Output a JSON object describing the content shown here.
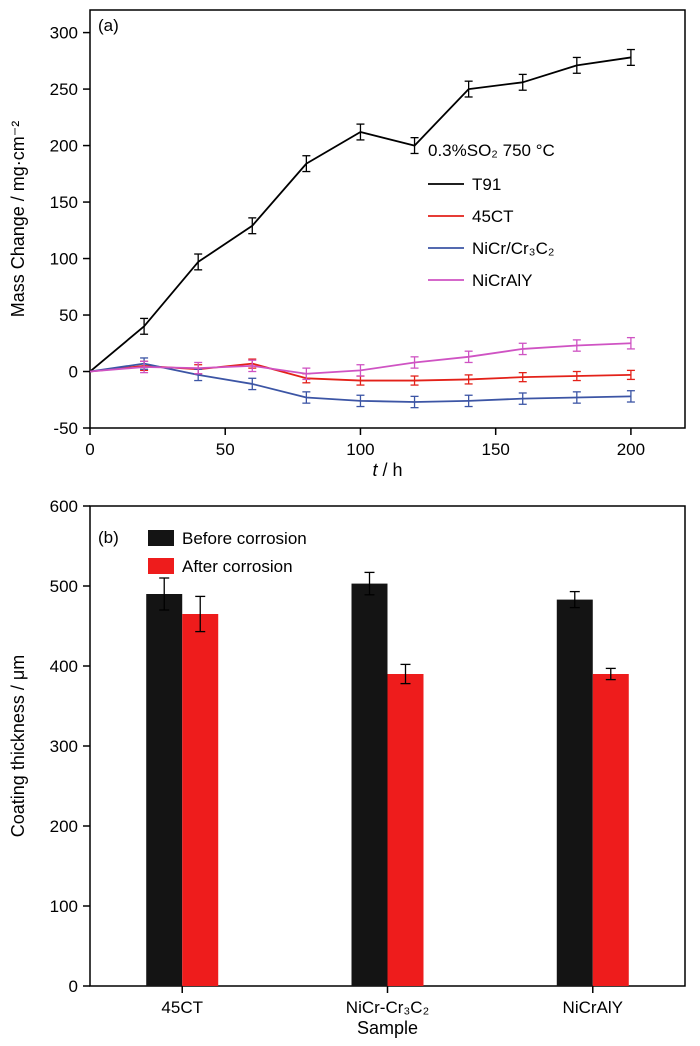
{
  "figure": {
    "panel_a_tag": "(a)",
    "panel_b_tag": "(b)"
  },
  "chart_data": [
    {
      "type": "line",
      "panel": "a",
      "xlabel_italic": "t",
      "xlabel_rest": " / h",
      "ylabel": "Mass Change / mg·cm⁻²",
      "annotation": "0.3%SO₂ 750 °C",
      "xlim": [
        0,
        220
      ],
      "ylim": [
        -50,
        320
      ],
      "xticks": [
        0,
        50,
        100,
        150,
        200
      ],
      "yticks": [
        -50,
        0,
        50,
        100,
        150,
        200,
        250,
        300
      ],
      "legend_position": "middle-right",
      "grid": false,
      "x": [
        0,
        20,
        40,
        60,
        80,
        100,
        120,
        140,
        160,
        180,
        200
      ],
      "series": [
        {
          "name": "T91",
          "color": "#000000",
          "err": 7,
          "values": [
            0,
            40,
            97,
            129,
            184,
            212,
            200,
            250,
            256,
            271,
            278
          ]
        },
        {
          "name": "45CT",
          "color": "#e32119",
          "err": 4,
          "values": [
            0,
            5,
            2,
            7,
            -6,
            -8,
            -8,
            -7,
            -5,
            -4,
            -3
          ]
        },
        {
          "name": "NiCr/Cr₃C₂",
          "color": "#3c55a5",
          "err": 5,
          "values": [
            0,
            7,
            -3,
            -11,
            -23,
            -26,
            -27,
            -26,
            -24,
            -23,
            -22
          ]
        },
        {
          "name": "NiCrAlY",
          "color": "#cf53c3",
          "err": 5,
          "values": [
            0,
            4,
            3,
            5,
            -2,
            1,
            8,
            13,
            20,
            23,
            25
          ]
        }
      ]
    },
    {
      "type": "bar",
      "panel": "b",
      "xlabel": "Sample",
      "ylabel": "Coating thickness / μm",
      "ylim": [
        0,
        600
      ],
      "yticks": [
        0,
        100,
        200,
        300,
        400,
        500,
        600
      ],
      "legend_position": "top-left",
      "grid": false,
      "categories": [
        "45CT",
        "NiCr-Cr₃C₂",
        "NiCrAlY"
      ],
      "series": [
        {
          "name": "Before corrosion",
          "color": "#141414",
          "values": [
            490,
            503,
            483
          ],
          "err": [
            20,
            14,
            10
          ]
        },
        {
          "name": "After corrosion",
          "color": "#ee1c1c",
          "values": [
            465,
            390,
            390
          ],
          "err": [
            22,
            12,
            7
          ]
        }
      ]
    }
  ]
}
